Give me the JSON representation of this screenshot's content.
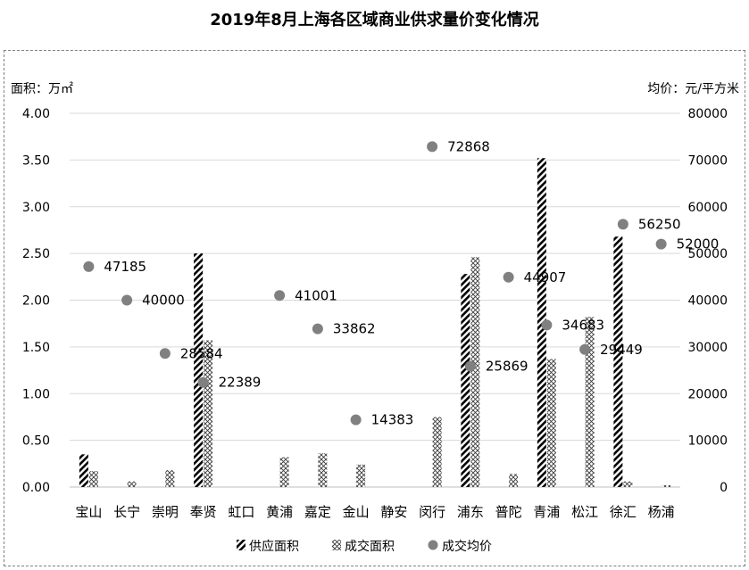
{
  "chart_data": {
    "type": "bar",
    "title": "2019年8月上海各区域商业供求量价变化情况",
    "y_left_label": "面积：万㎡",
    "y_right_label": "均价：元/平方米",
    "y_left_lim": [
      0,
      4
    ],
    "y_right_lim": [
      0,
      80000
    ],
    "y_left_ticks": [
      "0.00",
      "0.50",
      "1.00",
      "1.50",
      "2.00",
      "2.50",
      "3.00",
      "3.50",
      "4.00"
    ],
    "y_right_ticks": [
      "0",
      "10000",
      "20000",
      "30000",
      "40000",
      "50000",
      "60000",
      "70000",
      "80000"
    ],
    "grid": "horizontal",
    "legend_position": "bottom",
    "categories": [
      "宝山",
      "长宁",
      "崇明",
      "奉贤",
      "虹口",
      "黄浦",
      "嘉定",
      "金山",
      "静安",
      "闵行",
      "浦东",
      "普陀",
      "青浦",
      "松江",
      "徐汇",
      "杨浦"
    ],
    "series": [
      {
        "name": "供应面积",
        "type": "bar",
        "axis": "left",
        "pattern": "diagonal",
        "values": [
          0.35,
          0,
          0,
          2.5,
          0,
          0,
          0,
          0,
          0,
          0,
          2.28,
          0,
          3.52,
          0,
          2.68,
          0
        ]
      },
      {
        "name": "成交面积",
        "type": "bar",
        "axis": "left",
        "pattern": "crosshatch",
        "values": [
          0.17,
          0.06,
          0.18,
          1.57,
          0,
          0.32,
          0.36,
          0.24,
          0,
          0.75,
          2.46,
          0.14,
          1.37,
          1.82,
          0.06,
          0.02
        ]
      },
      {
        "name": "成交均价",
        "type": "scatter",
        "axis": "right",
        "values": [
          47185,
          40000,
          28584,
          22389,
          null,
          41001,
          33862,
          14383,
          null,
          72868,
          25869,
          44907,
          34683,
          29449,
          56250,
          52000
        ],
        "labels": [
          "47185",
          "40000",
          "28584",
          "22389",
          "",
          "41001",
          "33862",
          "14383",
          "",
          "72868",
          "25869",
          "44907",
          "34683",
          "29449",
          "56250",
          "52000"
        ]
      }
    ]
  },
  "colors": {
    "supply": "#000000",
    "deal": "#4d4d4d",
    "price": "#808080",
    "grid": "#d9d9d9"
  }
}
